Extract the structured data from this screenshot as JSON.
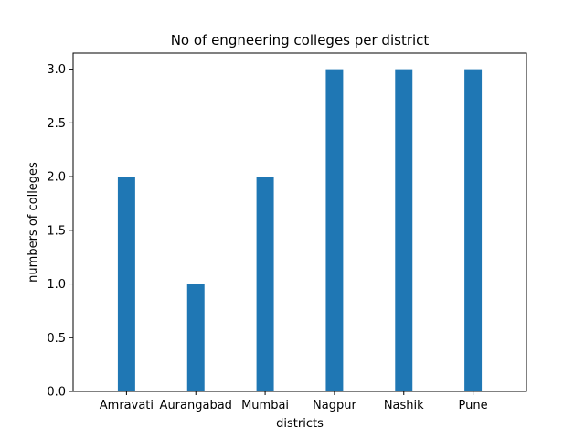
{
  "chart_data": {
    "type": "bar",
    "title": "No of engneering colleges per district",
    "xlabel": "districts",
    "ylabel": "numbers of colleges",
    "categories": [
      "Amravati",
      "Aurangabad",
      "Mumbai",
      "Nagpur",
      "Nashik",
      "Pune"
    ],
    "values": [
      2,
      1,
      2,
      3,
      3,
      3
    ],
    "ylim": [
      0,
      3.15
    ],
    "yticks": [
      0.0,
      0.5,
      1.0,
      1.5,
      2.0,
      2.5,
      3.0
    ],
    "grid": false,
    "legend": "none",
    "bar_color": "#1f77b4"
  }
}
